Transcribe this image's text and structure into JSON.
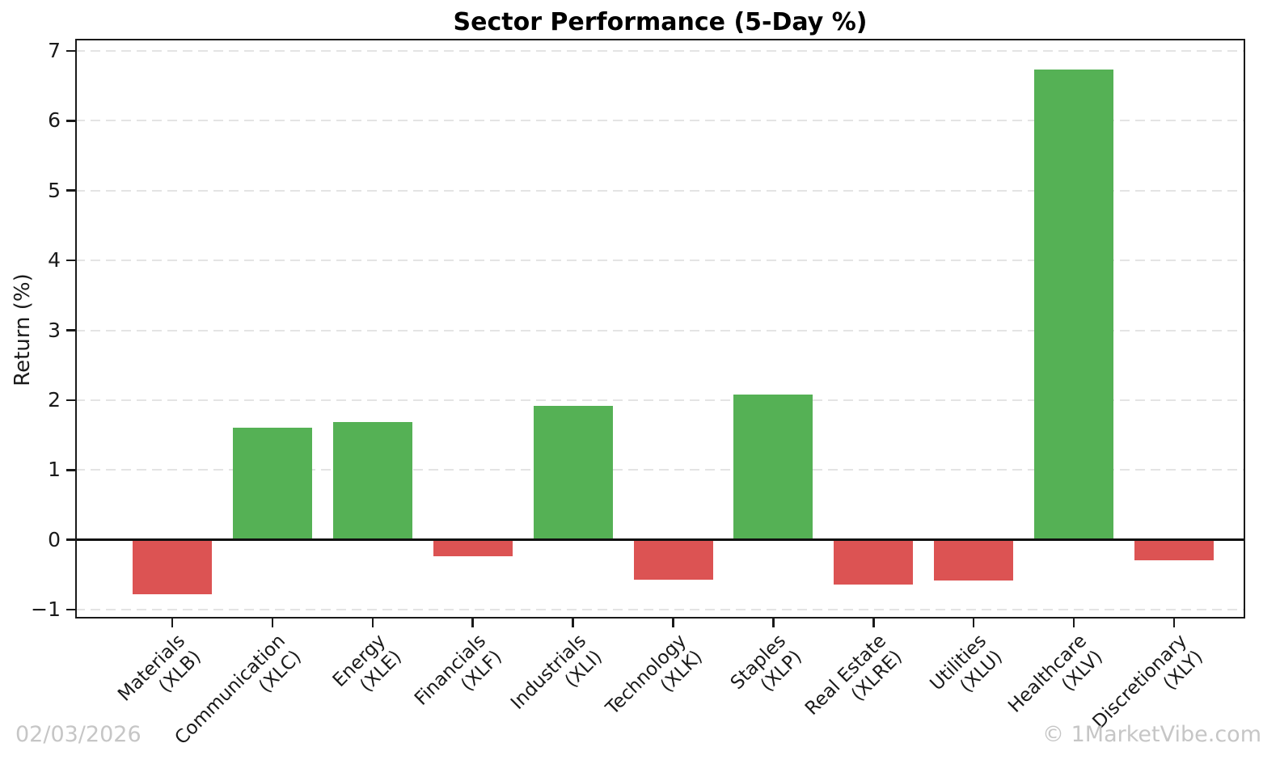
{
  "title": "Sector Performance (5-Day %)",
  "footer": {
    "date": "02/03/2026",
    "watermark": "© 1MarketVibe.com"
  },
  "chart_data": {
    "type": "bar",
    "title": "Sector Performance (5-Day %)",
    "xlabel": "",
    "ylabel": "Return (%)",
    "ylim": [
      -1.15,
      7.15
    ],
    "yticks": [
      -1,
      0,
      1,
      2,
      3,
      4,
      5,
      6,
      7
    ],
    "grid": "horizontal-dashed",
    "legend": "none",
    "categories": [
      "Materials (XLB)",
      "Communication (XLC)",
      "Energy (XLE)",
      "Financials (XLF)",
      "Industrials (XLI)",
      "Technology (XLK)",
      "Staples (XLP)",
      "Real Estate (XLRE)",
      "Utilities (XLU)",
      "Healthcare (XLV)",
      "Discretionary (XLY)"
    ],
    "values": [
      -0.78,
      1.61,
      1.69,
      -0.23,
      1.92,
      -0.57,
      2.08,
      -0.64,
      -0.58,
      6.73,
      -0.29
    ],
    "positive_color": "#55b155",
    "negative_color": "#dc5353"
  }
}
